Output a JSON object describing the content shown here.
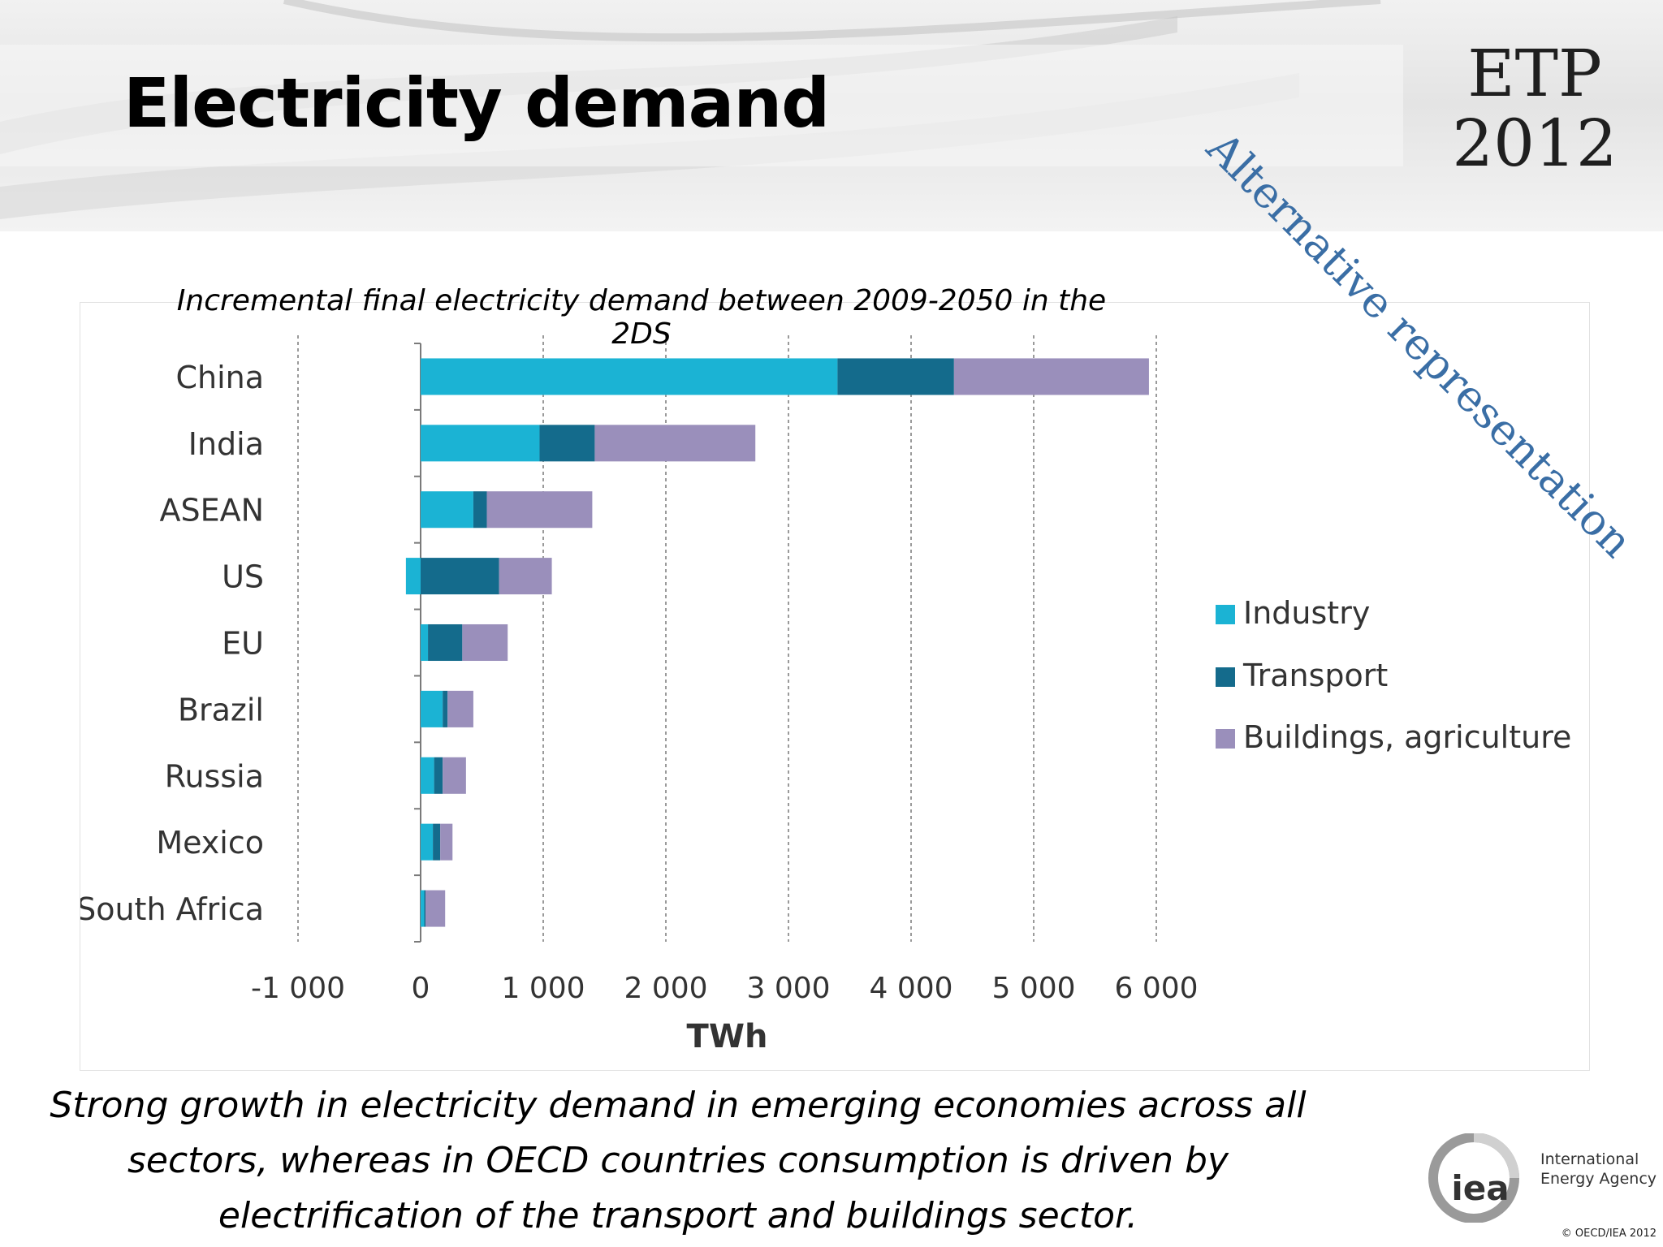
{
  "slide": {
    "title": "Electricity demand",
    "stamp": "Alternative representation",
    "caption": "Strong growth in electricity demand in emerging economies across all sectors, whereas in OECD countries consumption is driven by electrification of the transport and buildings sector.",
    "copyright": "© OECD/IEA 2012"
  },
  "logo": {
    "etp_line1": "ETP",
    "etp_line2": "2012",
    "iea_mark": "iea",
    "iea_name_line1": "International",
    "iea_name_line2": "Energy Agency"
  },
  "colors": {
    "industry": "#1bb3d4",
    "transport": "#146b8c",
    "buildings": "#9a8fbb",
    "grid": "#9a9a9a",
    "stamp": "#3a6ea5"
  },
  "chart_data": {
    "type": "bar",
    "orientation": "horizontal",
    "stacked": true,
    "title": "Incremental final electricity demand between 2009-2050 in the 2DS",
    "xlabel": "TWh",
    "ylabel": "",
    "xlim": [
      -1000,
      6000
    ],
    "xticks": [
      -1000,
      0,
      1000,
      2000,
      3000,
      4000,
      5000,
      6000
    ],
    "xtick_labels": [
      "-1 000",
      "0",
      "1 000",
      "2 000",
      "3 000",
      "4 000",
      "5 000",
      "6 000"
    ],
    "grid": "vertical dashed",
    "legend_position": "right",
    "categories": [
      "China",
      "India",
      "ASEAN",
      "US",
      "EU",
      "Brazil",
      "Russia",
      "Mexico",
      "South Africa"
    ],
    "series": [
      {
        "name": "Industry",
        "values": [
          3400,
          970,
          430,
          -120,
          60,
          180,
          110,
          100,
          30
        ]
      },
      {
        "name": "Transport",
        "values": [
          950,
          450,
          110,
          640,
          280,
          40,
          70,
          60,
          10
        ]
      },
      {
        "name": "Buildings, agriculture",
        "values": [
          1590,
          1310,
          860,
          430,
          370,
          210,
          190,
          100,
          160
        ]
      }
    ]
  }
}
